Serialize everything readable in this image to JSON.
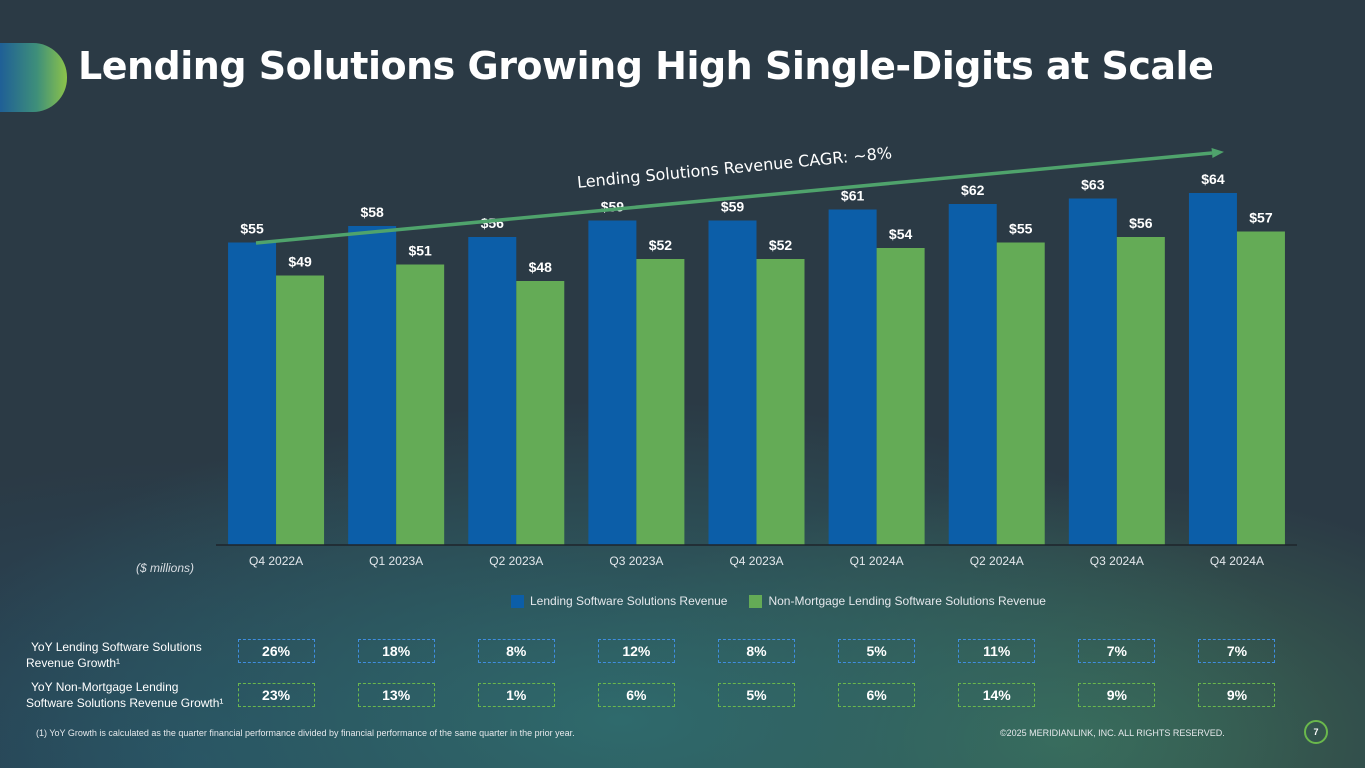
{
  "slide": {
    "title": "Lending Solutions Growing High Single-Digits at Scale",
    "units_label": "($ millions)",
    "page_number": "7",
    "footnote": "(1) YoY Growth is calculated as the quarter financial performance divided by financial performance of the same quarter in the prior year.",
    "copyright": "©2025 MERIDIANLINK, INC. ALL RIGHTS RESERVED."
  },
  "colors": {
    "series_blue": "#0c5ea8",
    "series_green": "#64ab56",
    "cagr_arrow": "#4fa36c",
    "axis": "#1e252b",
    "tick_text": "#e4e8ec"
  },
  "chart_data": {
    "type": "bar",
    "title": "",
    "annotation": "Lending Solutions Revenue CAGR: ~8%",
    "xlabel": "",
    "ylabel": "($ millions)",
    "ylim": [
      0,
      70
    ],
    "categories": [
      "Q4 2022A",
      "Q1 2023A",
      "Q2 2023A",
      "Q3 2023A",
      "Q4 2023A",
      "Q1 2024A",
      "Q2 2024A",
      "Q3 2024A",
      "Q4 2024A"
    ],
    "series": [
      {
        "name": "Lending Software Solutions Revenue",
        "values": [
          55,
          58,
          56,
          59,
          59,
          61,
          62,
          63,
          64
        ],
        "labels": [
          "$55",
          "$58",
          "$56",
          "$59",
          "$59",
          "$61",
          "$62",
          "$63",
          "$64"
        ]
      },
      {
        "name": "Non-Mortgage Lending Software Solutions Revenue",
        "values": [
          49,
          51,
          48,
          52,
          52,
          54,
          55,
          56,
          57
        ],
        "labels": [
          "$49",
          "$51",
          "$48",
          "$52",
          "$52",
          "$54",
          "$55",
          "$56",
          "$57"
        ]
      }
    ],
    "legend": [
      "Lending Software Solutions Revenue",
      "Non-Mortgage Lending Software Solutions Revenue"
    ],
    "legend_position": "bottom"
  },
  "growth_rows": [
    {
      "label_line1": "YoY Lending Software Solutions",
      "label_line2": "Revenue Growth¹",
      "values": [
        "26%",
        "18%",
        "8%",
        "12%",
        "8%",
        "5%",
        "11%",
        "7%",
        "7%"
      ]
    },
    {
      "label_line1": "YoY Non-Mortgage Lending",
      "label_line2": "Software Solutions Revenue Growth¹",
      "values": [
        "23%",
        "13%",
        "1%",
        "6%",
        "5%",
        "6%",
        "14%",
        "9%",
        "9%"
      ]
    }
  ]
}
